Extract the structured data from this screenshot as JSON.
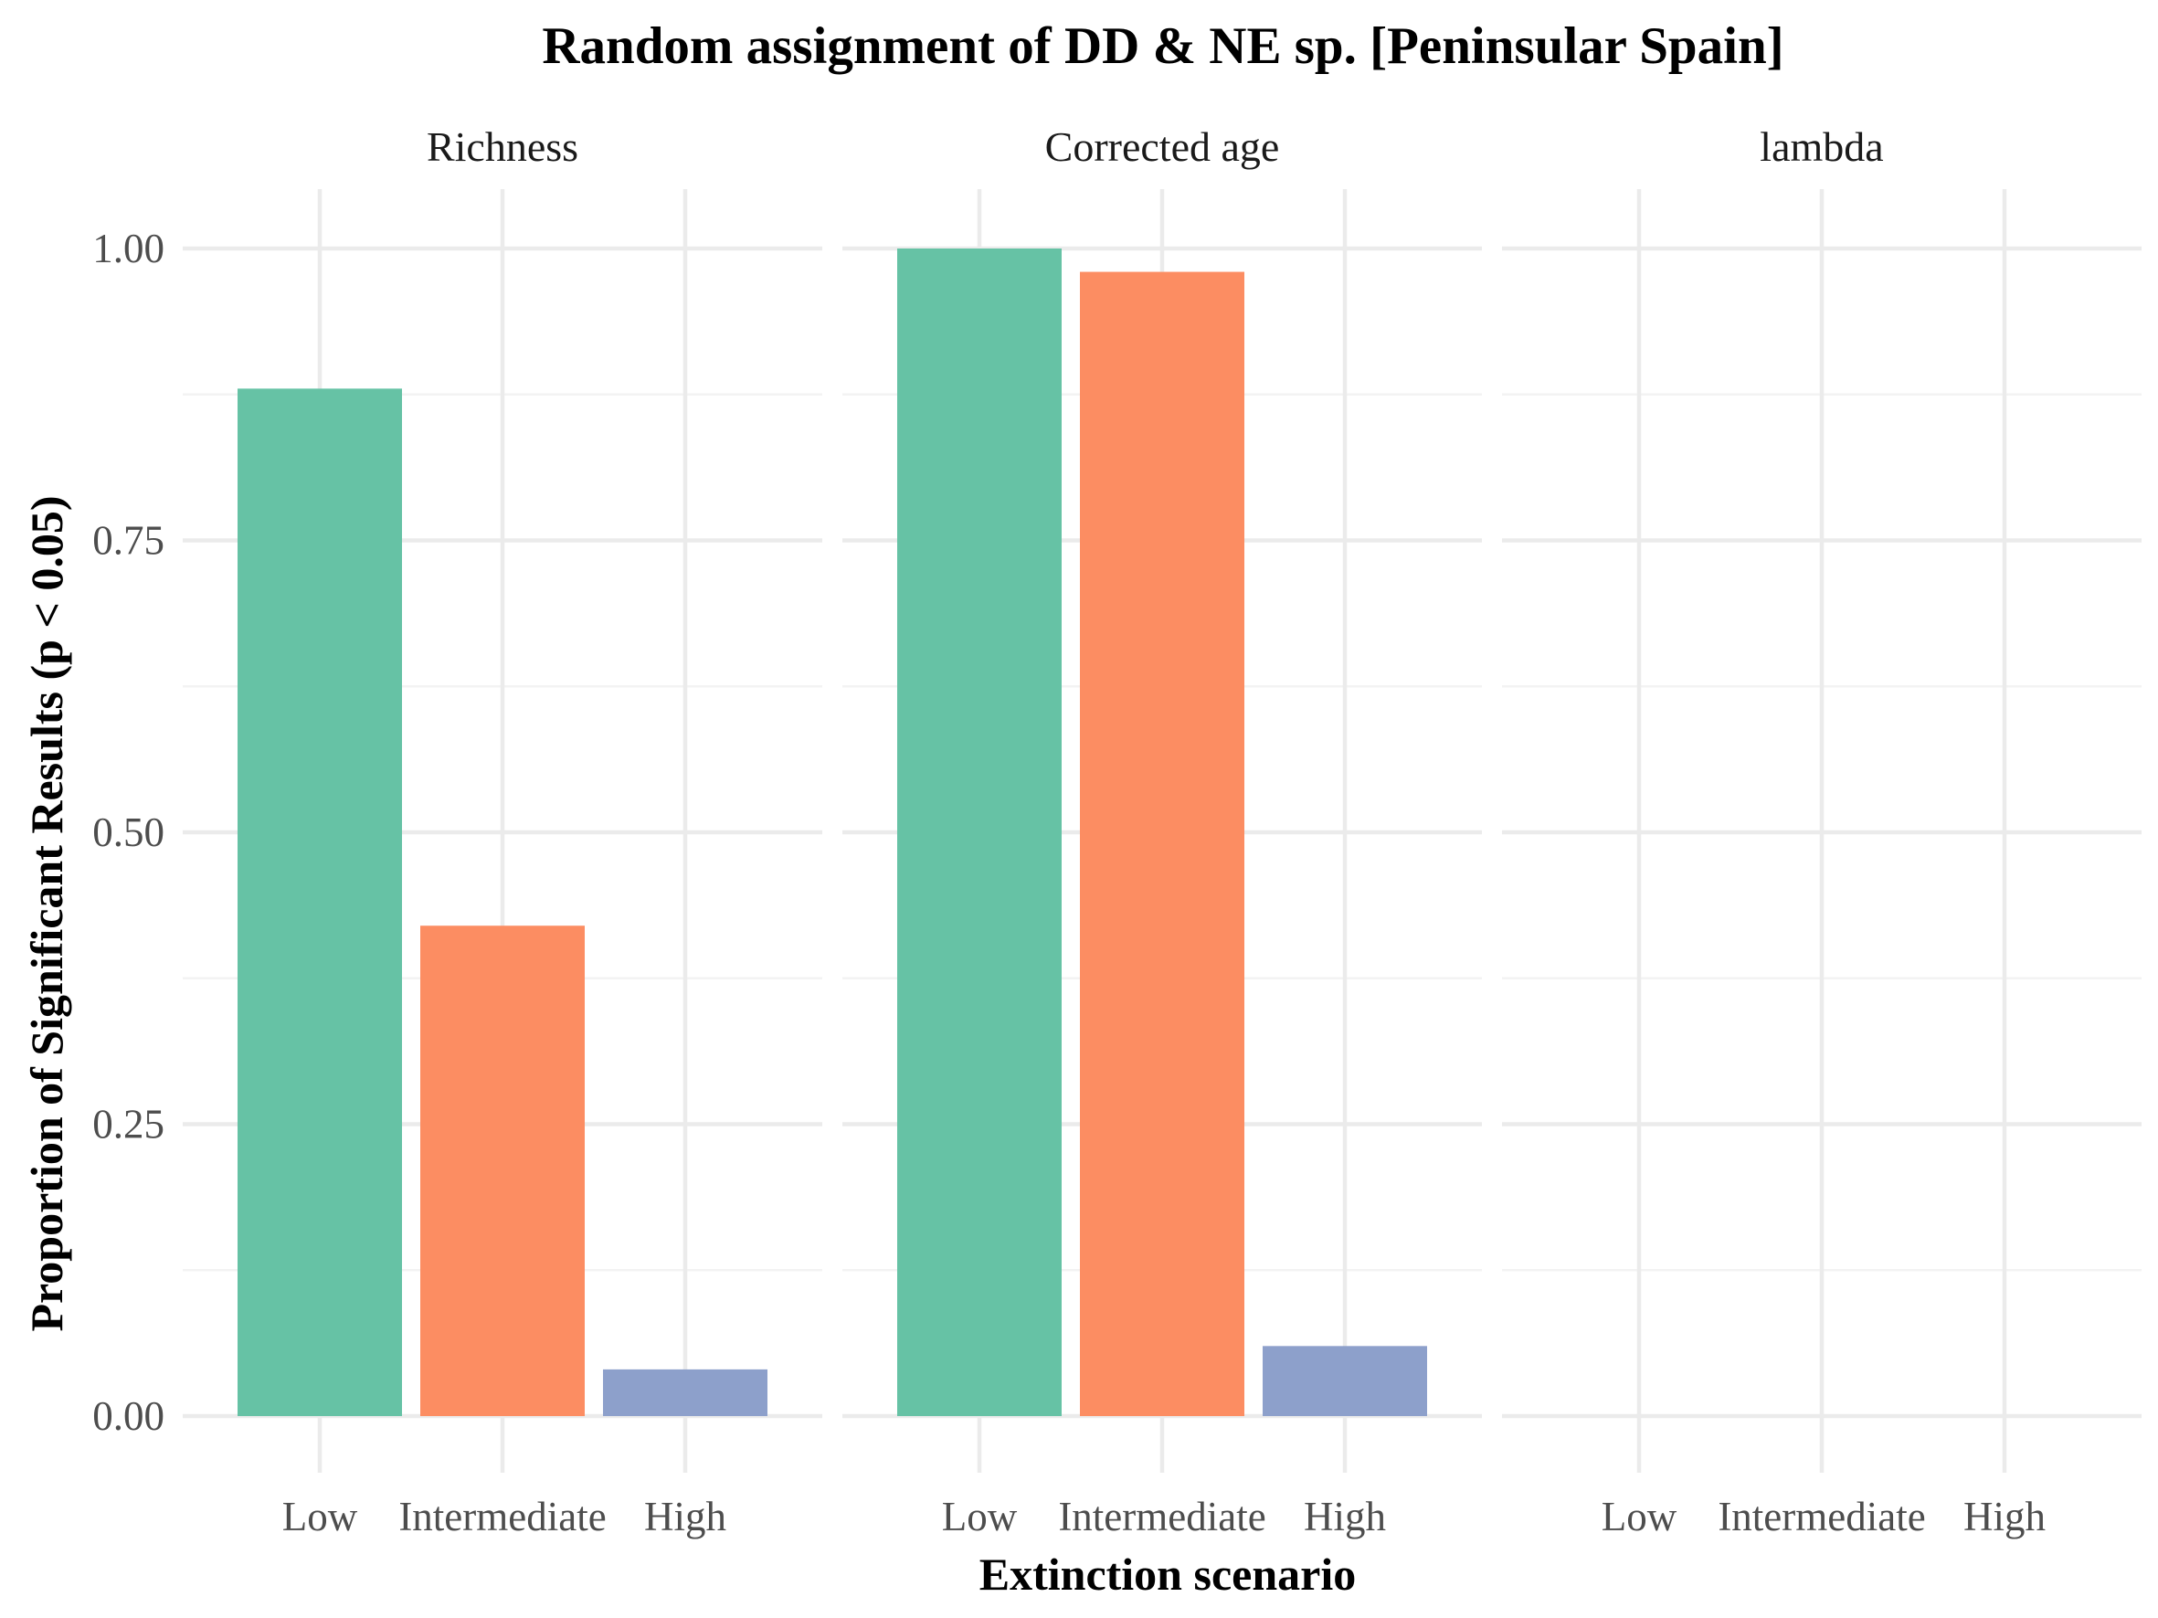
{
  "chart_data": {
    "type": "bar",
    "title": "Random assignment of DD & NE sp. [Peninsular Spain]",
    "xlabel": "Extinction scenario",
    "ylabel": "Proportion of Significant Results (p < 0.05)",
    "ylim": [
      0,
      1
    ],
    "y_ticks": [
      "0.00",
      "0.25",
      "0.50",
      "0.75",
      "1.00"
    ],
    "y_tick_values": [
      0,
      0.25,
      0.5,
      0.75,
      1.0
    ],
    "y_minor_values": [
      0.125,
      0.375,
      0.625,
      0.875
    ],
    "categories": [
      "Low",
      "Intermediate",
      "High"
    ],
    "grid": true,
    "legend": "none",
    "colors": {
      "Low": "#66c2a5",
      "Intermediate": "#fc8d62",
      "High": "#8da0cb"
    },
    "panels": [
      {
        "label": "Richness",
        "values": [
          0.88,
          0.42,
          0.04
        ]
      },
      {
        "label": "Corrected age",
        "values": [
          1.0,
          0.98,
          0.06
        ]
      },
      {
        "label": "lambda",
        "values": [
          0,
          0,
          0
        ]
      }
    ]
  }
}
